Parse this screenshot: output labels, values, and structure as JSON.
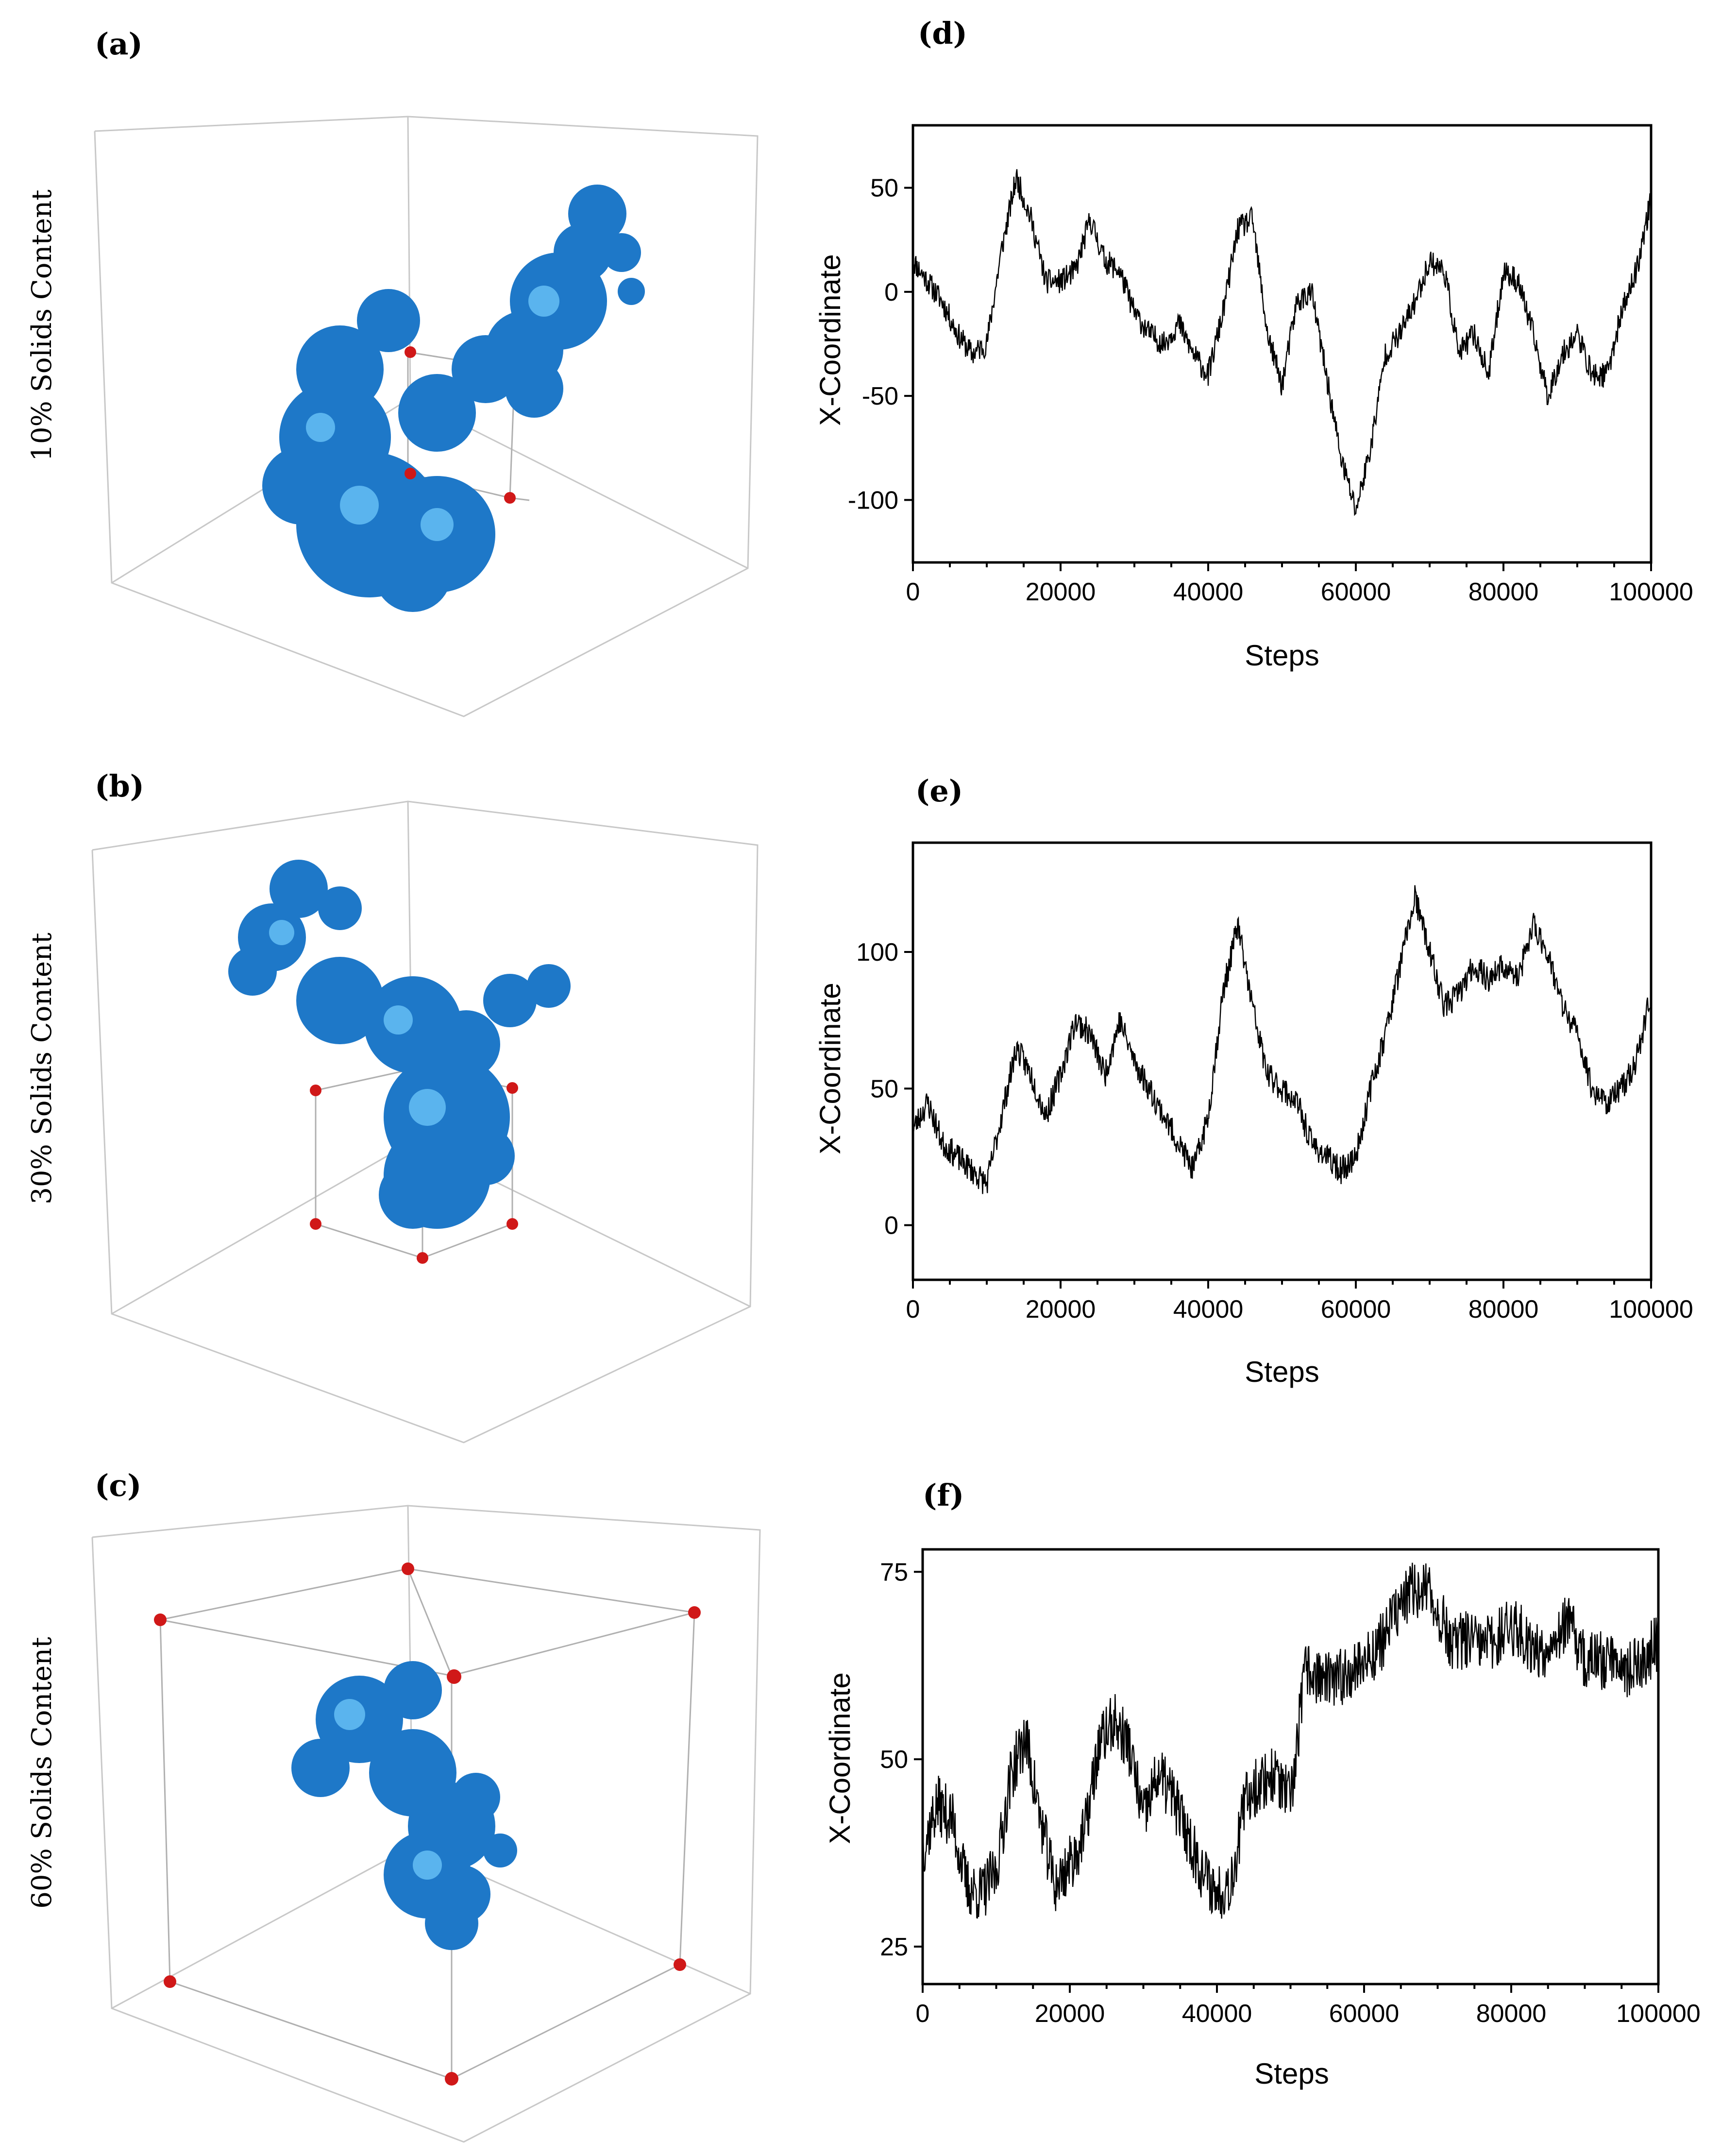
{
  "panels_3d": [
    {
      "id": "a",
      "label": "(a)",
      "side_label": "10% Solids Content"
    },
    {
      "id": "b",
      "label": "(b)",
      "side_label": "30% Solids Content"
    },
    {
      "id": "c",
      "label": "(c)",
      "side_label": "60% Solids Content"
    }
  ],
  "colors": {
    "cluster": "#1e78c8",
    "cluster_highlight": "#5ab4ee",
    "corner_marker": "#d01818",
    "box_edge": "#c8c8c8"
  },
  "chart_data": [
    {
      "id": "d",
      "label": "(d)",
      "type": "line",
      "title": "",
      "xlabel": "Steps",
      "ylabel": "X-Coordinate",
      "xlim": [
        0,
        100000
      ],
      "ylim": [
        -130,
        80
      ],
      "xticks": [
        0,
        20000,
        40000,
        60000,
        80000,
        100000
      ],
      "yticks": [
        50,
        0,
        -50,
        -100
      ],
      "grid": false,
      "series": [
        {
          "name": "X-Coordinate",
          "noise": 6,
          "seed": 11,
          "x": [
            0,
            2000,
            4000,
            6000,
            8000,
            10000,
            12000,
            14000,
            16000,
            18000,
            20000,
            22000,
            24000,
            26000,
            28000,
            30000,
            32000,
            34000,
            36000,
            38000,
            40000,
            42000,
            44000,
            46000,
            48000,
            50000,
            52000,
            54000,
            56000,
            58000,
            60000,
            62000,
            64000,
            66000,
            68000,
            70000,
            72000,
            74000,
            76000,
            78000,
            80000,
            82000,
            84000,
            86000,
            88000,
            90000,
            92000,
            94000,
            96000,
            98000,
            100000
          ],
          "y": [
            15,
            5,
            -5,
            -20,
            -30,
            -25,
            20,
            55,
            35,
            5,
            5,
            10,
            35,
            15,
            10,
            -10,
            -20,
            -25,
            -15,
            -30,
            -40,
            -10,
            30,
            35,
            -20,
            -45,
            -5,
            0,
            -40,
            -80,
            -105,
            -75,
            -30,
            -20,
            -5,
            15,
            10,
            -30,
            -20,
            -40,
            10,
            5,
            -20,
            -50,
            -30,
            -20,
            -40,
            -40,
            -10,
            10,
            45
          ]
        }
      ]
    },
    {
      "id": "e",
      "label": "(e)",
      "type": "line",
      "title": "",
      "xlabel": "Steps",
      "ylabel": "X-Coordinate",
      "xlim": [
        0,
        100000
      ],
      "ylim": [
        -20,
        140
      ],
      "xticks": [
        0,
        20000,
        40000,
        60000,
        80000,
        100000
      ],
      "yticks": [
        100,
        50,
        0
      ],
      "grid": false,
      "series": [
        {
          "name": "X-Coordinate",
          "noise": 5,
          "seed": 23,
          "x": [
            0,
            2000,
            4000,
            6000,
            8000,
            10000,
            12000,
            14000,
            16000,
            18000,
            20000,
            22000,
            24000,
            26000,
            28000,
            30000,
            32000,
            34000,
            36000,
            38000,
            40000,
            42000,
            44000,
            46000,
            48000,
            50000,
            52000,
            54000,
            56000,
            58000,
            60000,
            62000,
            64000,
            66000,
            68000,
            70000,
            72000,
            74000,
            76000,
            78000,
            80000,
            82000,
            84000,
            86000,
            88000,
            90000,
            92000,
            94000,
            96000,
            98000,
            100000
          ],
          "y": [
            35,
            45,
            30,
            25,
            20,
            15,
            40,
            65,
            55,
            40,
            55,
            75,
            70,
            55,
            75,
            60,
            50,
            40,
            30,
            20,
            40,
            85,
            110,
            80,
            55,
            50,
            45,
            30,
            25,
            20,
            25,
            50,
            70,
            95,
            120,
            100,
            80,
            85,
            95,
            90,
            95,
            90,
            110,
            100,
            80,
            70,
            50,
            45,
            50,
            60,
            85
          ]
        }
      ]
    },
    {
      "id": "f",
      "label": "(f)",
      "type": "line",
      "title": "",
      "xlabel": "Steps",
      "ylabel": "X-Coordinate",
      "xlim": [
        0,
        100000
      ],
      "ylim": [
        20,
        78
      ],
      "xticks": [
        0,
        20000,
        40000,
        60000,
        80000,
        100000
      ],
      "yticks": [
        75,
        50,
        25
      ],
      "grid": false,
      "series": [
        {
          "name": "X-Coordinate",
          "noise": 4,
          "seed": 37,
          "x": [
            0,
            2000,
            4000,
            6000,
            8000,
            10000,
            12000,
            14000,
            16000,
            18000,
            20000,
            22000,
            24000,
            26000,
            28000,
            30000,
            32000,
            34000,
            36000,
            38000,
            40000,
            42000,
            44000,
            46000,
            48000,
            50000,
            52000,
            54000,
            56000,
            58000,
            60000,
            62000,
            64000,
            66000,
            68000,
            70000,
            72000,
            74000,
            76000,
            78000,
            80000,
            82000,
            84000,
            86000,
            88000,
            90000,
            92000,
            94000,
            96000,
            98000,
            100000
          ],
          "y": [
            38,
            44,
            42,
            33,
            32,
            35,
            48,
            53,
            42,
            33,
            36,
            40,
            52,
            55,
            52,
            42,
            48,
            45,
            40,
            35,
            32,
            34,
            45,
            47,
            48,
            44,
            62,
            61,
            60,
            62,
            63,
            65,
            69,
            72,
            73,
            70,
            65,
            66,
            65,
            66,
            68,
            66,
            64,
            67,
            68,
            63,
            63,
            64,
            62,
            63,
            66
          ]
        }
      ]
    }
  ]
}
